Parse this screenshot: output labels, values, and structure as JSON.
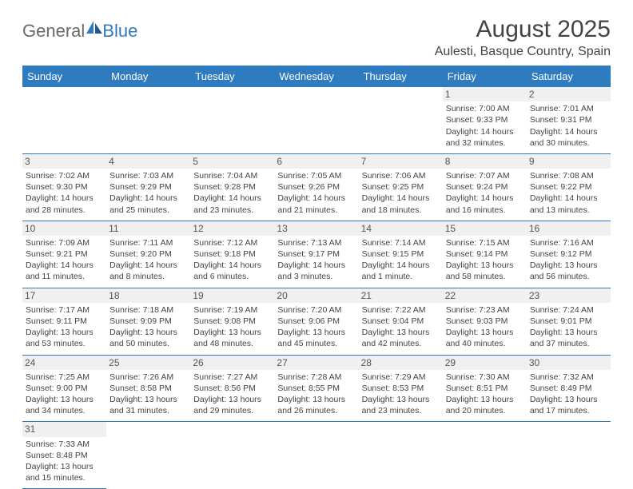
{
  "logo": {
    "part1": "General",
    "part2": "Blue"
  },
  "title": "August 2025",
  "location": "Aulesti, Basque Country, Spain",
  "days": [
    "Sunday",
    "Monday",
    "Tuesday",
    "Wednesday",
    "Thursday",
    "Friday",
    "Saturday"
  ],
  "colors": {
    "header_bg": "#2f7bbf",
    "header_text": "#ffffff",
    "border": "#2f7bbf",
    "daynum_bg": "#f0f0f0",
    "text": "#444444"
  },
  "weeks": [
    [
      null,
      null,
      null,
      null,
      null,
      {
        "n": "1",
        "sr": "Sunrise: 7:00 AM",
        "ss": "Sunset: 9:33 PM",
        "d1": "Daylight: 14 hours",
        "d2": "and 32 minutes."
      },
      {
        "n": "2",
        "sr": "Sunrise: 7:01 AM",
        "ss": "Sunset: 9:31 PM",
        "d1": "Daylight: 14 hours",
        "d2": "and 30 minutes."
      }
    ],
    [
      {
        "n": "3",
        "sr": "Sunrise: 7:02 AM",
        "ss": "Sunset: 9:30 PM",
        "d1": "Daylight: 14 hours",
        "d2": "and 28 minutes."
      },
      {
        "n": "4",
        "sr": "Sunrise: 7:03 AM",
        "ss": "Sunset: 9:29 PM",
        "d1": "Daylight: 14 hours",
        "d2": "and 25 minutes."
      },
      {
        "n": "5",
        "sr": "Sunrise: 7:04 AM",
        "ss": "Sunset: 9:28 PM",
        "d1": "Daylight: 14 hours",
        "d2": "and 23 minutes."
      },
      {
        "n": "6",
        "sr": "Sunrise: 7:05 AM",
        "ss": "Sunset: 9:26 PM",
        "d1": "Daylight: 14 hours",
        "d2": "and 21 minutes."
      },
      {
        "n": "7",
        "sr": "Sunrise: 7:06 AM",
        "ss": "Sunset: 9:25 PM",
        "d1": "Daylight: 14 hours",
        "d2": "and 18 minutes."
      },
      {
        "n": "8",
        "sr": "Sunrise: 7:07 AM",
        "ss": "Sunset: 9:24 PM",
        "d1": "Daylight: 14 hours",
        "d2": "and 16 minutes."
      },
      {
        "n": "9",
        "sr": "Sunrise: 7:08 AM",
        "ss": "Sunset: 9:22 PM",
        "d1": "Daylight: 14 hours",
        "d2": "and 13 minutes."
      }
    ],
    [
      {
        "n": "10",
        "sr": "Sunrise: 7:09 AM",
        "ss": "Sunset: 9:21 PM",
        "d1": "Daylight: 14 hours",
        "d2": "and 11 minutes."
      },
      {
        "n": "11",
        "sr": "Sunrise: 7:11 AM",
        "ss": "Sunset: 9:20 PM",
        "d1": "Daylight: 14 hours",
        "d2": "and 8 minutes."
      },
      {
        "n": "12",
        "sr": "Sunrise: 7:12 AM",
        "ss": "Sunset: 9:18 PM",
        "d1": "Daylight: 14 hours",
        "d2": "and 6 minutes."
      },
      {
        "n": "13",
        "sr": "Sunrise: 7:13 AM",
        "ss": "Sunset: 9:17 PM",
        "d1": "Daylight: 14 hours",
        "d2": "and 3 minutes."
      },
      {
        "n": "14",
        "sr": "Sunrise: 7:14 AM",
        "ss": "Sunset: 9:15 PM",
        "d1": "Daylight: 14 hours",
        "d2": "and 1 minute."
      },
      {
        "n": "15",
        "sr": "Sunrise: 7:15 AM",
        "ss": "Sunset: 9:14 PM",
        "d1": "Daylight: 13 hours",
        "d2": "and 58 minutes."
      },
      {
        "n": "16",
        "sr": "Sunrise: 7:16 AM",
        "ss": "Sunset: 9:12 PM",
        "d1": "Daylight: 13 hours",
        "d2": "and 56 minutes."
      }
    ],
    [
      {
        "n": "17",
        "sr": "Sunrise: 7:17 AM",
        "ss": "Sunset: 9:11 PM",
        "d1": "Daylight: 13 hours",
        "d2": "and 53 minutes."
      },
      {
        "n": "18",
        "sr": "Sunrise: 7:18 AM",
        "ss": "Sunset: 9:09 PM",
        "d1": "Daylight: 13 hours",
        "d2": "and 50 minutes."
      },
      {
        "n": "19",
        "sr": "Sunrise: 7:19 AM",
        "ss": "Sunset: 9:08 PM",
        "d1": "Daylight: 13 hours",
        "d2": "and 48 minutes."
      },
      {
        "n": "20",
        "sr": "Sunrise: 7:20 AM",
        "ss": "Sunset: 9:06 PM",
        "d1": "Daylight: 13 hours",
        "d2": "and 45 minutes."
      },
      {
        "n": "21",
        "sr": "Sunrise: 7:22 AM",
        "ss": "Sunset: 9:04 PM",
        "d1": "Daylight: 13 hours",
        "d2": "and 42 minutes."
      },
      {
        "n": "22",
        "sr": "Sunrise: 7:23 AM",
        "ss": "Sunset: 9:03 PM",
        "d1": "Daylight: 13 hours",
        "d2": "and 40 minutes."
      },
      {
        "n": "23",
        "sr": "Sunrise: 7:24 AM",
        "ss": "Sunset: 9:01 PM",
        "d1": "Daylight: 13 hours",
        "d2": "and 37 minutes."
      }
    ],
    [
      {
        "n": "24",
        "sr": "Sunrise: 7:25 AM",
        "ss": "Sunset: 9:00 PM",
        "d1": "Daylight: 13 hours",
        "d2": "and 34 minutes."
      },
      {
        "n": "25",
        "sr": "Sunrise: 7:26 AM",
        "ss": "Sunset: 8:58 PM",
        "d1": "Daylight: 13 hours",
        "d2": "and 31 minutes."
      },
      {
        "n": "26",
        "sr": "Sunrise: 7:27 AM",
        "ss": "Sunset: 8:56 PM",
        "d1": "Daylight: 13 hours",
        "d2": "and 29 minutes."
      },
      {
        "n": "27",
        "sr": "Sunrise: 7:28 AM",
        "ss": "Sunset: 8:55 PM",
        "d1": "Daylight: 13 hours",
        "d2": "and 26 minutes."
      },
      {
        "n": "28",
        "sr": "Sunrise: 7:29 AM",
        "ss": "Sunset: 8:53 PM",
        "d1": "Daylight: 13 hours",
        "d2": "and 23 minutes."
      },
      {
        "n": "29",
        "sr": "Sunrise: 7:30 AM",
        "ss": "Sunset: 8:51 PM",
        "d1": "Daylight: 13 hours",
        "d2": "and 20 minutes."
      },
      {
        "n": "30",
        "sr": "Sunrise: 7:32 AM",
        "ss": "Sunset: 8:49 PM",
        "d1": "Daylight: 13 hours",
        "d2": "and 17 minutes."
      }
    ],
    [
      {
        "n": "31",
        "sr": "Sunrise: 7:33 AM",
        "ss": "Sunset: 8:48 PM",
        "d1": "Daylight: 13 hours",
        "d2": "and 15 minutes."
      },
      null,
      null,
      null,
      null,
      null,
      null
    ]
  ]
}
